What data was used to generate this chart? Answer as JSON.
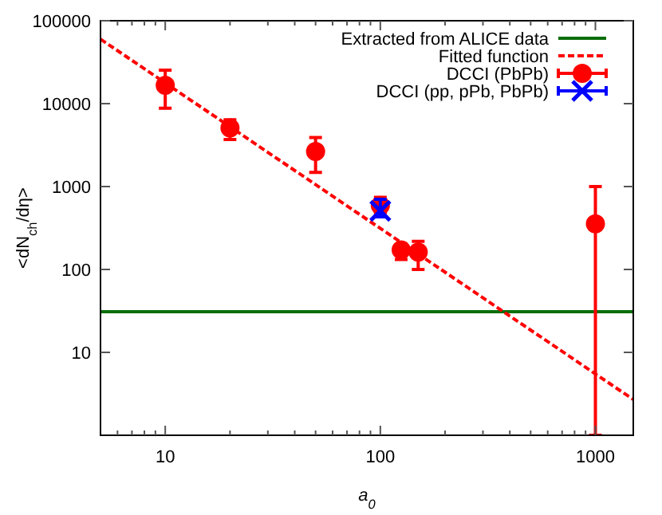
{
  "chart_data": {
    "type": "scatter",
    "xlabel": "a$_{0}$",
    "ylabel": "<dN$_{ch}$/dη>",
    "log": "xy",
    "xlim": [
      5,
      1500
    ],
    "ylim": [
      1,
      100000
    ],
    "xticks": [
      {
        "value": 6,
        "label": null
      },
      {
        "value": 7,
        "label": null
      },
      {
        "value": 8,
        "label": null
      },
      {
        "value": 9,
        "label": null
      },
      10,
      {
        "value": 20,
        "label": null
      },
      {
        "value": 30,
        "label": null
      },
      {
        "value": 40,
        "label": null
      },
      {
        "value": 50,
        "label": null
      },
      {
        "value": 60,
        "label": null
      },
      {
        "value": 70,
        "label": null
      },
      {
        "value": 80,
        "label": null
      },
      {
        "value": 90,
        "label": null
      },
      100,
      {
        "value": 200,
        "label": null
      },
      {
        "value": 300,
        "label": null
      },
      {
        "value": 400,
        "label": null
      },
      {
        "value": 500,
        "label": null
      },
      {
        "value": 600,
        "label": null
      },
      {
        "value": 700,
        "label": null
      },
      {
        "value": 800,
        "label": null
      },
      {
        "value": 900,
        "label": null
      },
      1000
    ],
    "yticks": [
      10,
      100,
      1000,
      10000,
      100000
    ],
    "grid": false,
    "legend": "top right",
    "series": [
      {
        "name": "Extracted from ALICE data",
        "type": "line",
        "color": "#0a6e0a",
        "line_style": "solid",
        "marker": "none",
        "x": [
          5,
          1500
        ],
        "values": [
          31,
          31
        ]
      },
      {
        "name": "Fitted function",
        "type": "line",
        "color": "#ff0000",
        "line_style": "dashed",
        "marker": "none",
        "x": [
          5,
          1500
        ],
        "values": [
          60000,
          2.7
        ]
      },
      {
        "name": "DCCI (PbPb)",
        "color": "#ff0000",
        "marker": "circle",
        "x": [
          10,
          20,
          50,
          100,
          125,
          150,
          1000
        ],
        "values": [
          16600,
          5100,
          2650,
          590,
          172,
          162,
          355
        ],
        "errors": [
          [
            8800,
            25400
          ],
          [
            3700,
            6400
          ],
          [
            1480,
            3900
          ],
          [
            480,
            740
          ],
          [
            132,
            200
          ],
          [
            100,
            218
          ],
          [
            1,
            1000
          ]
        ]
      },
      {
        "name": "DCCI (pp, pPb, PbPb)",
        "color": "#0000ff",
        "marker": "cross",
        "x": [
          100
        ],
        "values": [
          510
        ],
        "errors": [
          [
            430,
            700
          ]
        ]
      }
    ]
  }
}
